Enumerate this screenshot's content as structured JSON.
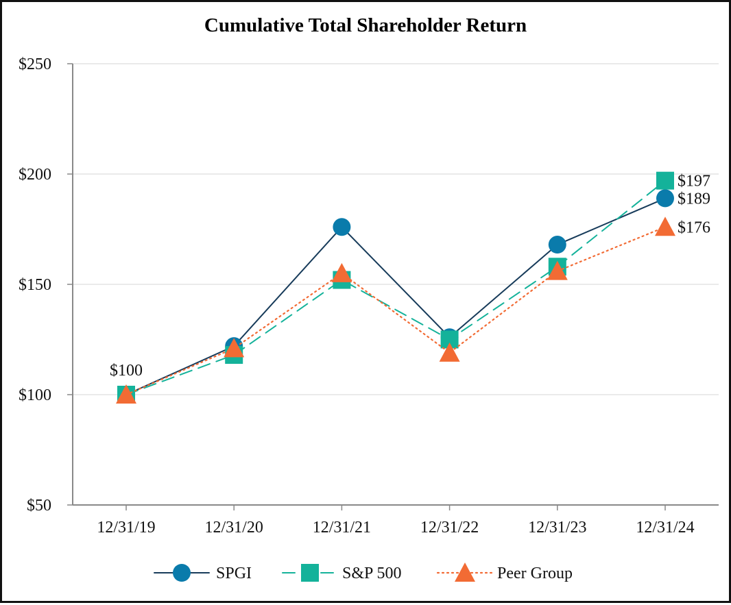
{
  "chart_data": {
    "type": "line",
    "title": "Cumulative Total Shareholder Return",
    "categories": [
      "12/31/19",
      "12/31/20",
      "12/31/21",
      "12/31/22",
      "12/31/23",
      "12/31/24"
    ],
    "ylim": [
      50,
      250
    ],
    "yticks": [
      50,
      100,
      150,
      200,
      250
    ],
    "ytick_labels": [
      "$50",
      "$100",
      "$150",
      "$200",
      "$250"
    ],
    "grid": true,
    "legend_position": "bottom",
    "series": [
      {
        "name": "SPGI",
        "values": [
          100,
          122,
          176,
          126,
          168,
          189
        ],
        "color": "#0a7bab",
        "line_color": "#173b5a",
        "marker": "circle",
        "line_style": "solid"
      },
      {
        "name": "S&P 500",
        "values": [
          100,
          118,
          152,
          125,
          158,
          197
        ],
        "color": "#14b29a",
        "line_color": "#14b29a",
        "marker": "square",
        "line_style": "dashed"
      },
      {
        "name": "Peer Group",
        "values": [
          100,
          121,
          155,
          119,
          156,
          176
        ],
        "color": "#f26b34",
        "line_color": "#f26b34",
        "marker": "triangle",
        "line_style": "dotted"
      }
    ],
    "annotations": [
      {
        "text": "$100",
        "category_index": 0,
        "value": 100,
        "placement": "above"
      },
      {
        "text": "$197",
        "category_index": 5,
        "value": 197,
        "placement": "right"
      },
      {
        "text": "$189",
        "category_index": 5,
        "value": 189,
        "placement": "right"
      },
      {
        "text": "$176",
        "category_index": 5,
        "value": 176,
        "placement": "right"
      }
    ]
  }
}
